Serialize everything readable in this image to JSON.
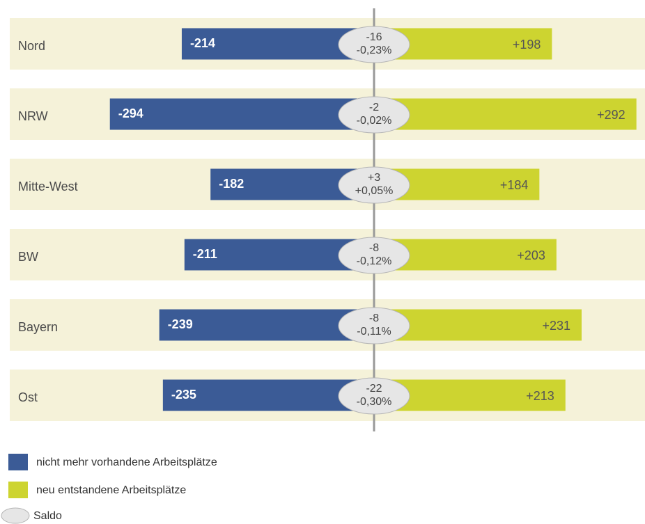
{
  "chart_data": {
    "type": "diverging-bar",
    "categories": [
      "Nord",
      "NRW",
      "Mitte-West",
      "BW",
      "Bayern",
      "Ost"
    ],
    "series": [
      {
        "name": "nicht mehr vorhandene Arbeitsplätze",
        "color": "#3b5b96",
        "values": [
          -214,
          -294,
          -182,
          -211,
          -239,
          -235
        ],
        "value_labels": [
          "-214",
          "-294",
          "-182",
          "-211",
          "-239",
          "-235"
        ]
      },
      {
        "name": "neu entstandene Arbeitsplätze",
        "color": "#cdd430",
        "values": [
          198,
          292,
          184,
          203,
          231,
          213
        ],
        "value_labels": [
          "+198",
          "+292",
          "+184",
          "+203",
          "+231",
          "+213"
        ]
      },
      {
        "name": "Saldo",
        "color": "#e6e6e6",
        "values": [
          -16,
          -2,
          3,
          -8,
          -8,
          -22
        ],
        "value_labels": [
          "-16",
          "-2",
          "+3",
          "-8",
          "-8",
          "-22"
        ],
        "percent": [
          -0.23,
          -0.02,
          0.05,
          -0.12,
          -0.11,
          -0.3
        ],
        "percent_labels": [
          "-0,23%",
          "-0,02%",
          "+0,05%",
          "-0,12%",
          "-0,11%",
          "-0,30%"
        ]
      }
    ]
  }
}
